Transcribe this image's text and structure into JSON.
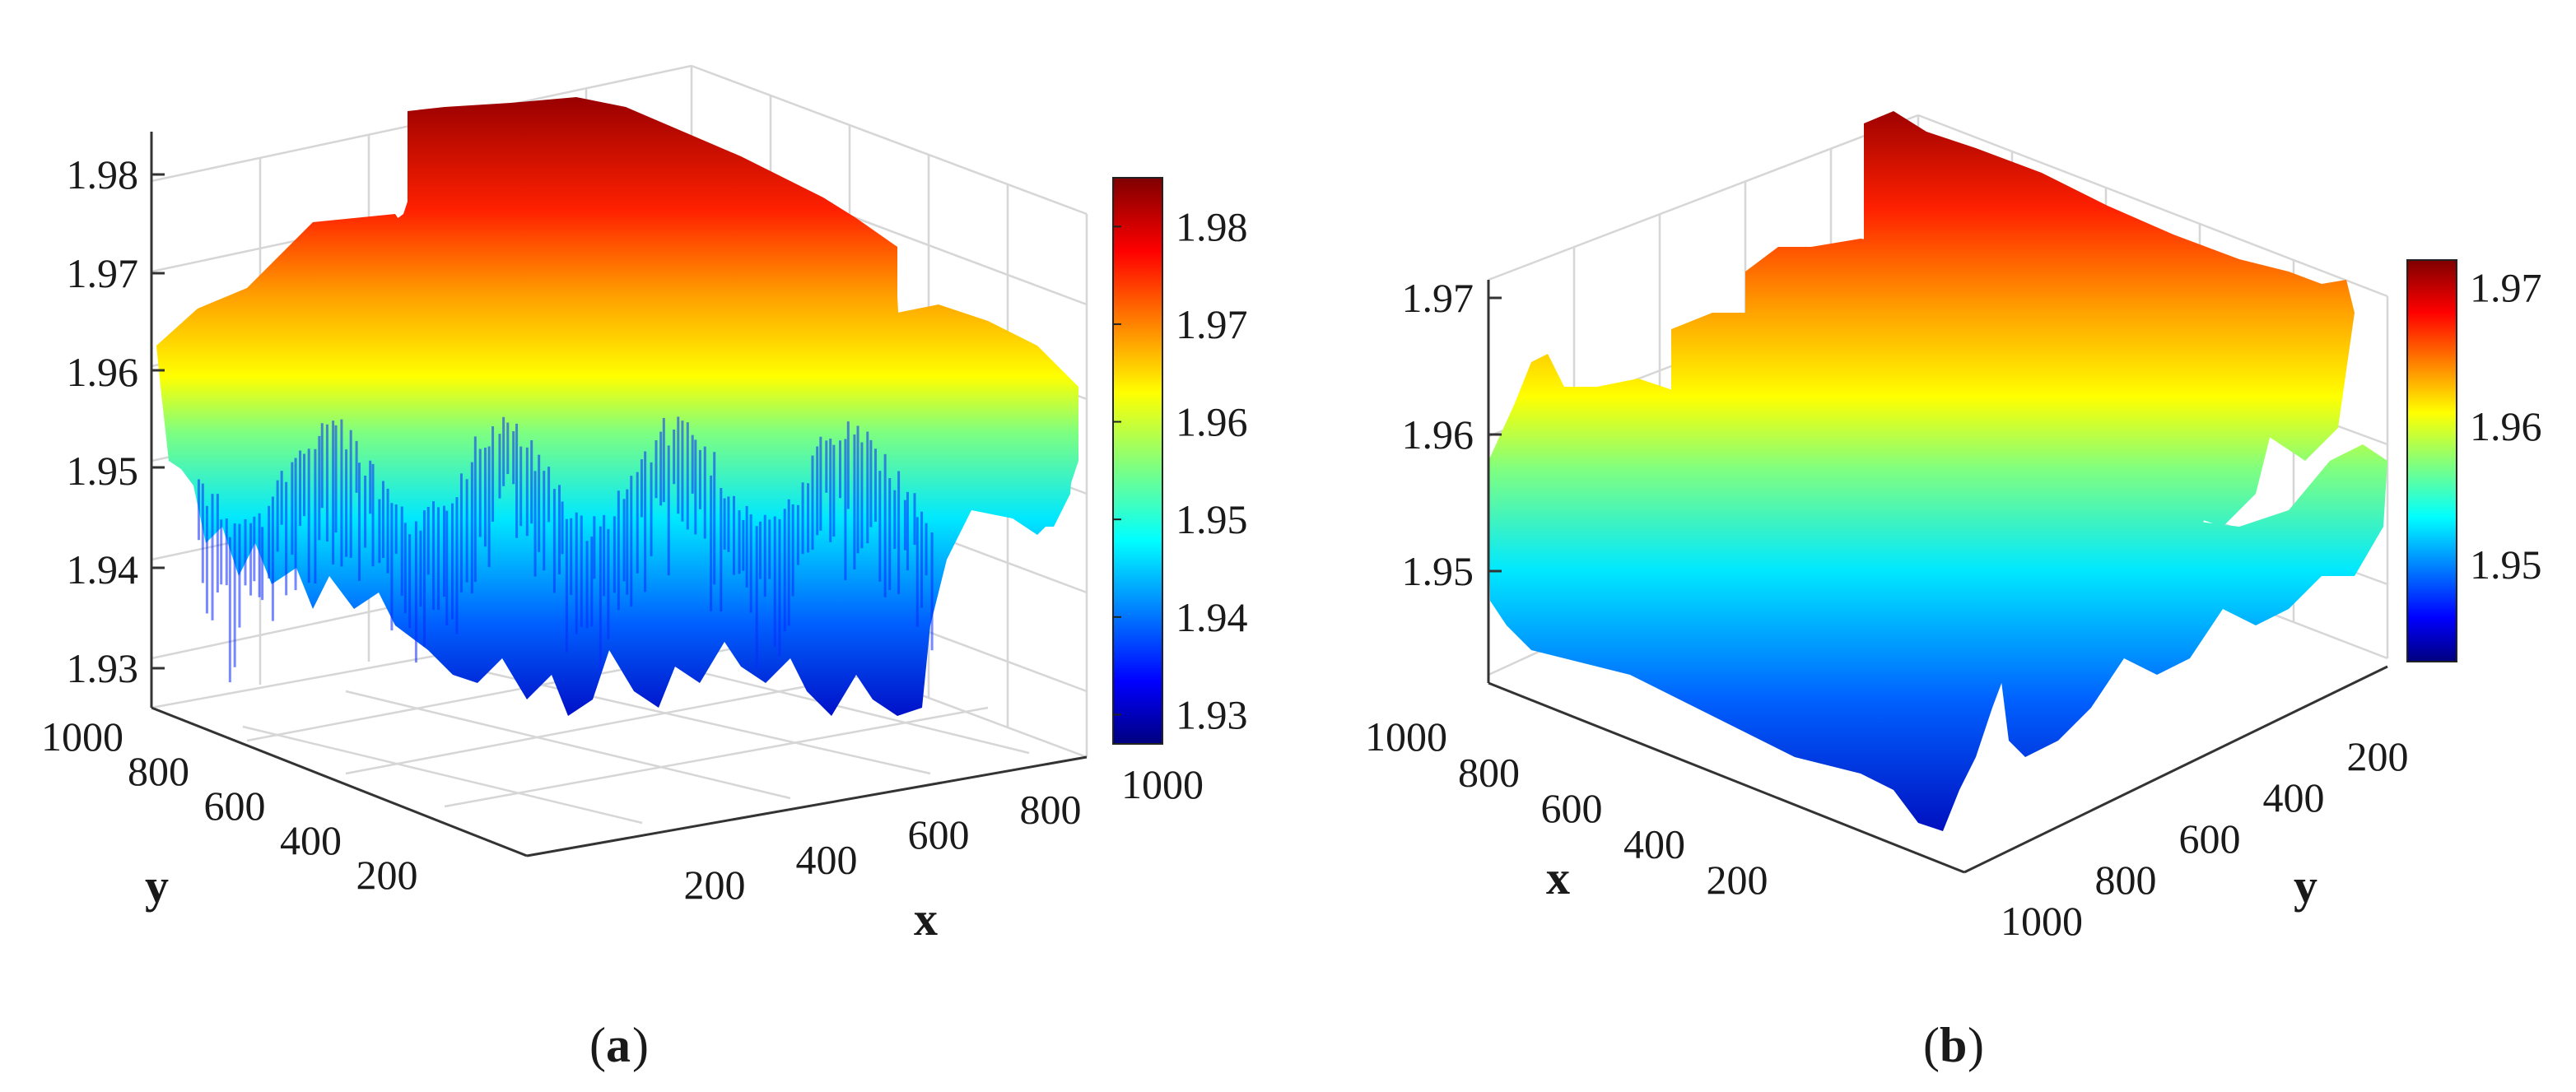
{
  "chart_data": [
    {
      "type": "surface",
      "panel": "a",
      "caption_open": "(",
      "caption_letter": "a",
      "caption_close": ")",
      "xlabel": "x",
      "ylabel": "y",
      "zlabel": "",
      "colormap": "jet",
      "x_range": [
        0,
        1000
      ],
      "y_range": [
        0,
        1000
      ],
      "z_range": [
        1.925,
        1.985
      ],
      "x_ticks": [
        "200",
        "400",
        "600",
        "800",
        "1000"
      ],
      "y_ticks": [
        "200",
        "400",
        "600",
        "800",
        "1000"
      ],
      "z_ticks": [
        "1.93",
        "1.94",
        "1.95",
        "1.96",
        "1.97",
        "1.98"
      ],
      "colorbar_ticks": [
        "1.93",
        "1.94",
        "1.95",
        "1.96",
        "1.97",
        "1.98"
      ],
      "colorbar_limits": [
        1.927,
        1.985
      ],
      "description_values": {
        "max_plateau": 1.982,
        "mid_plateau": 1.972,
        "edge_level": 1.961,
        "min_value": 1.928
      }
    },
    {
      "type": "surface",
      "panel": "b",
      "caption_open": "(",
      "caption_letter": "b",
      "caption_close": ")",
      "xlabel": "x",
      "ylabel": "y",
      "zlabel": "",
      "colormap": "jet",
      "x_range": [
        0,
        1000
      ],
      "y_range": [
        0,
        1000
      ],
      "z_range": [
        1.944,
        1.972
      ],
      "x_ticks": [
        "200",
        "400",
        "600",
        "800",
        "1000"
      ],
      "y_ticks": [
        "200",
        "400",
        "600",
        "800",
        "1000"
      ],
      "z_ticks": [
        "1.95",
        "1.96",
        "1.97"
      ],
      "colorbar_ticks": [
        "1.95",
        "1.96",
        "1.97"
      ],
      "colorbar_limits": [
        1.943,
        1.972
      ],
      "description_values": {
        "max_ridge": 1.971,
        "front_ridge": 1.965,
        "min_value": 1.944
      }
    }
  ]
}
